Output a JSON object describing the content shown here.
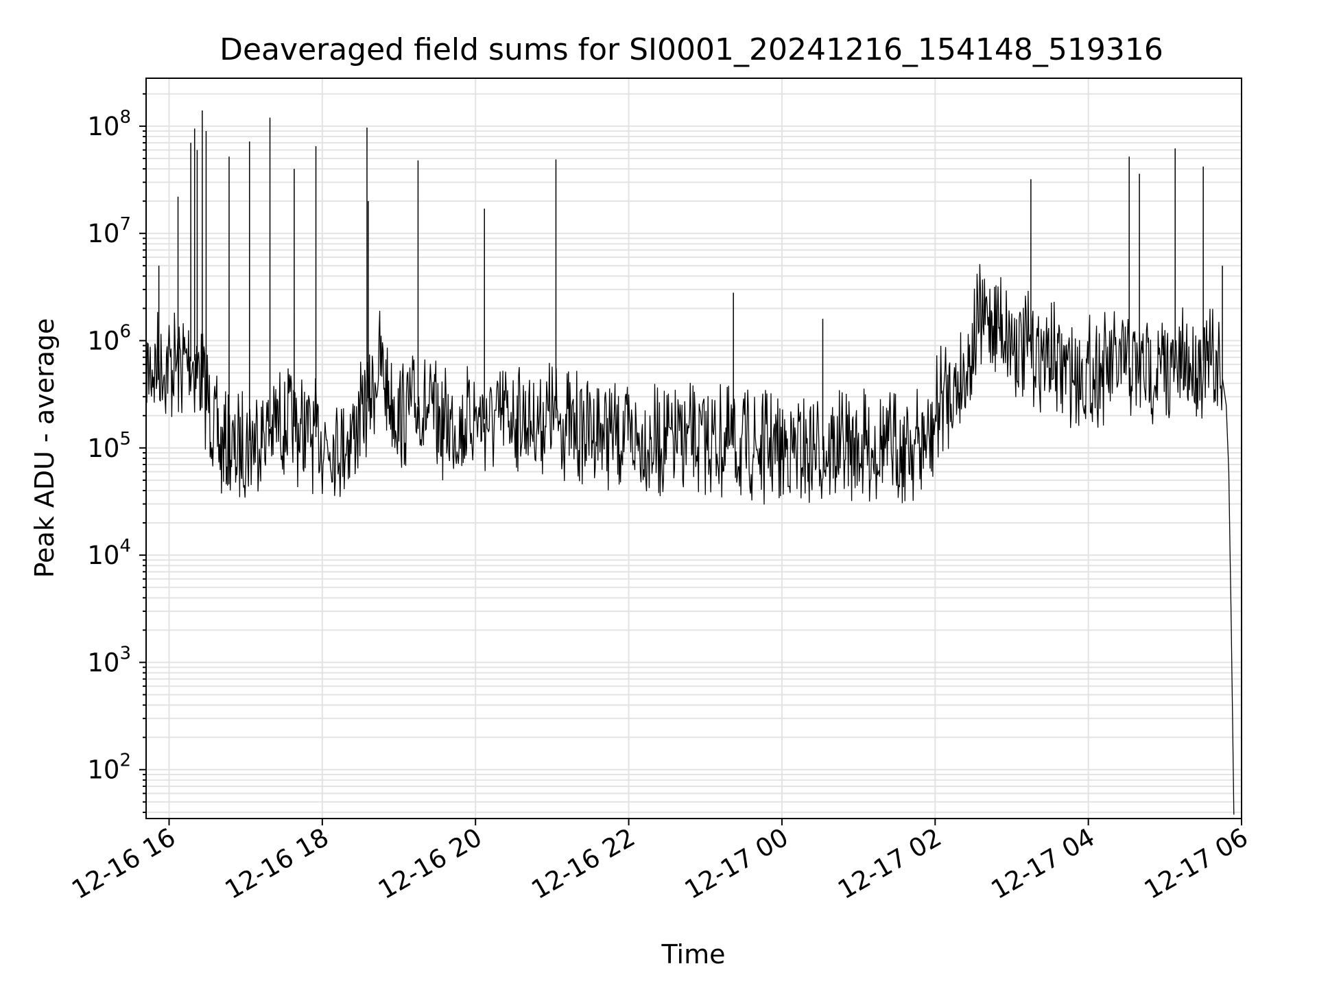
{
  "chart_data": {
    "type": "line",
    "title": "Deaveraged field sums for SI0001_20241216_154148_519316",
    "xlabel": "Time",
    "ylabel": "Peak ADU - average",
    "yscale": "log",
    "xlim": [
      "12-16 15:42",
      "12-17 06:00"
    ],
    "ylim": [
      35,
      280000000
    ],
    "x_ticks": [
      "12-16 16",
      "12-16 18",
      "12-16 20",
      "12-16 22",
      "12-17 00",
      "12-17 02",
      "12-17 04",
      "12-17 06"
    ],
    "y_ticks": [
      {
        "base": "10",
        "exp": "2",
        "value": 100
      },
      {
        "base": "10",
        "exp": "3",
        "value": 1000
      },
      {
        "base": "10",
        "exp": "4",
        "value": 10000
      },
      {
        "base": "10",
        "exp": "5",
        "value": 100000
      },
      {
        "base": "10",
        "exp": "6",
        "value": 1000000
      },
      {
        "base": "10",
        "exp": "7",
        "value": 10000000
      },
      {
        "base": "10",
        "exp": "8",
        "value": 100000000
      }
    ],
    "grid": true,
    "line_color": "#000000",
    "grid_color": "#e3e3e3",
    "series": [
      {
        "x": [
          "12-16 15:42",
          "12-16 15:50",
          "12-16 16:00",
          "12-16 16:10",
          "12-16 16:20",
          "12-16 16:30",
          "12-16 16:40",
          "12-16 16:50",
          "12-16 17:00",
          "12-16 17:15",
          "12-16 17:30",
          "12-16 17:45",
          "12-16 18:00",
          "12-16 18:15",
          "12-16 18:30",
          "12-16 18:45",
          "12-16 19:00",
          "12-16 19:15",
          "12-16 19:30",
          "12-16 19:45",
          "12-16 20:00",
          "12-16 20:15",
          "12-16 20:30",
          "12-16 20:45",
          "12-16 21:00",
          "12-16 21:15",
          "12-16 21:30",
          "12-16 21:45",
          "12-16 22:00",
          "12-16 22:30",
          "12-16 23:00",
          "12-16 23:30",
          "12-17 00:00",
          "12-17 00:30",
          "12-17 01:00",
          "12-17 01:30",
          "12-17 01:55",
          "12-17 02:05",
          "12-17 02:20",
          "12-17 02:35",
          "12-17 02:45",
          "12-17 03:00",
          "12-17 03:15",
          "12-17 03:30",
          "12-17 03:45",
          "12-17 04:00",
          "12-17 04:15",
          "12-17 04:30",
          "12-17 04:45",
          "12-17 05:00",
          "12-17 05:15",
          "12-17 05:30",
          "12-17 05:40",
          "12-17 05:45",
          "12-17 05:48",
          "12-17 05:50",
          "12-17 05:52",
          "12-17 05:54"
        ],
        "y": [
          550000,
          600000,
          580000,
          620000,
          650000,
          300000,
          100000,
          90000,
          110000,
          150000,
          180000,
          140000,
          120000,
          110000,
          180000,
          600000,
          200000,
          250000,
          180000,
          160000,
          200000,
          170000,
          220000,
          180000,
          200000,
          150000,
          160000,
          140000,
          120000,
          110000,
          120000,
          100000,
          100000,
          95000,
          100000,
          105000,
          110000,
          300000,
          400000,
          1500000,
          1800000,
          1000000,
          800000,
          700000,
          500000,
          500000,
          550000,
          600000,
          550000,
          500000,
          600000,
          650000,
          600000,
          450000,
          250000,
          60000,
          2000,
          38
        ]
      }
    ],
    "spikes": [
      {
        "x": "12-16 15:52",
        "y": 5000000
      },
      {
        "x": "12-16 16:07",
        "y": 22000000
      },
      {
        "x": "12-16 16:17",
        "y": 70000000
      },
      {
        "x": "12-16 16:20",
        "y": 95000000
      },
      {
        "x": "12-16 16:22",
        "y": 60000000
      },
      {
        "x": "12-16 16:26",
        "y": 140000000
      },
      {
        "x": "12-16 16:29",
        "y": 90000000
      },
      {
        "x": "12-16 16:47",
        "y": 52000000
      },
      {
        "x": "12-16 17:03",
        "y": 72000000
      },
      {
        "x": "12-16 17:19",
        "y": 120000000
      },
      {
        "x": "12-16 17:38",
        "y": 40000000
      },
      {
        "x": "12-16 17:55",
        "y": 65000000
      },
      {
        "x": "12-16 18:35",
        "y": 97000000
      },
      {
        "x": "12-16 18:36",
        "y": 20000000
      },
      {
        "x": "12-16 19:15",
        "y": 48000000
      },
      {
        "x": "12-16 20:07",
        "y": 17000000
      },
      {
        "x": "12-16 21:03",
        "y": 49000000
      },
      {
        "x": "12-16 23:22",
        "y": 2800000
      },
      {
        "x": "12-17 00:32",
        "y": 1600000
      },
      {
        "x": "12-17 03:15",
        "y": 32000000
      },
      {
        "x": "12-17 04:32",
        "y": 52000000
      },
      {
        "x": "12-17 04:40",
        "y": 36000000
      },
      {
        "x": "12-17 05:08",
        "y": 62000000
      },
      {
        "x": "12-17 05:30",
        "y": 42000000
      },
      {
        "x": "12-17 05:45",
        "y": 5000000
      }
    ]
  }
}
